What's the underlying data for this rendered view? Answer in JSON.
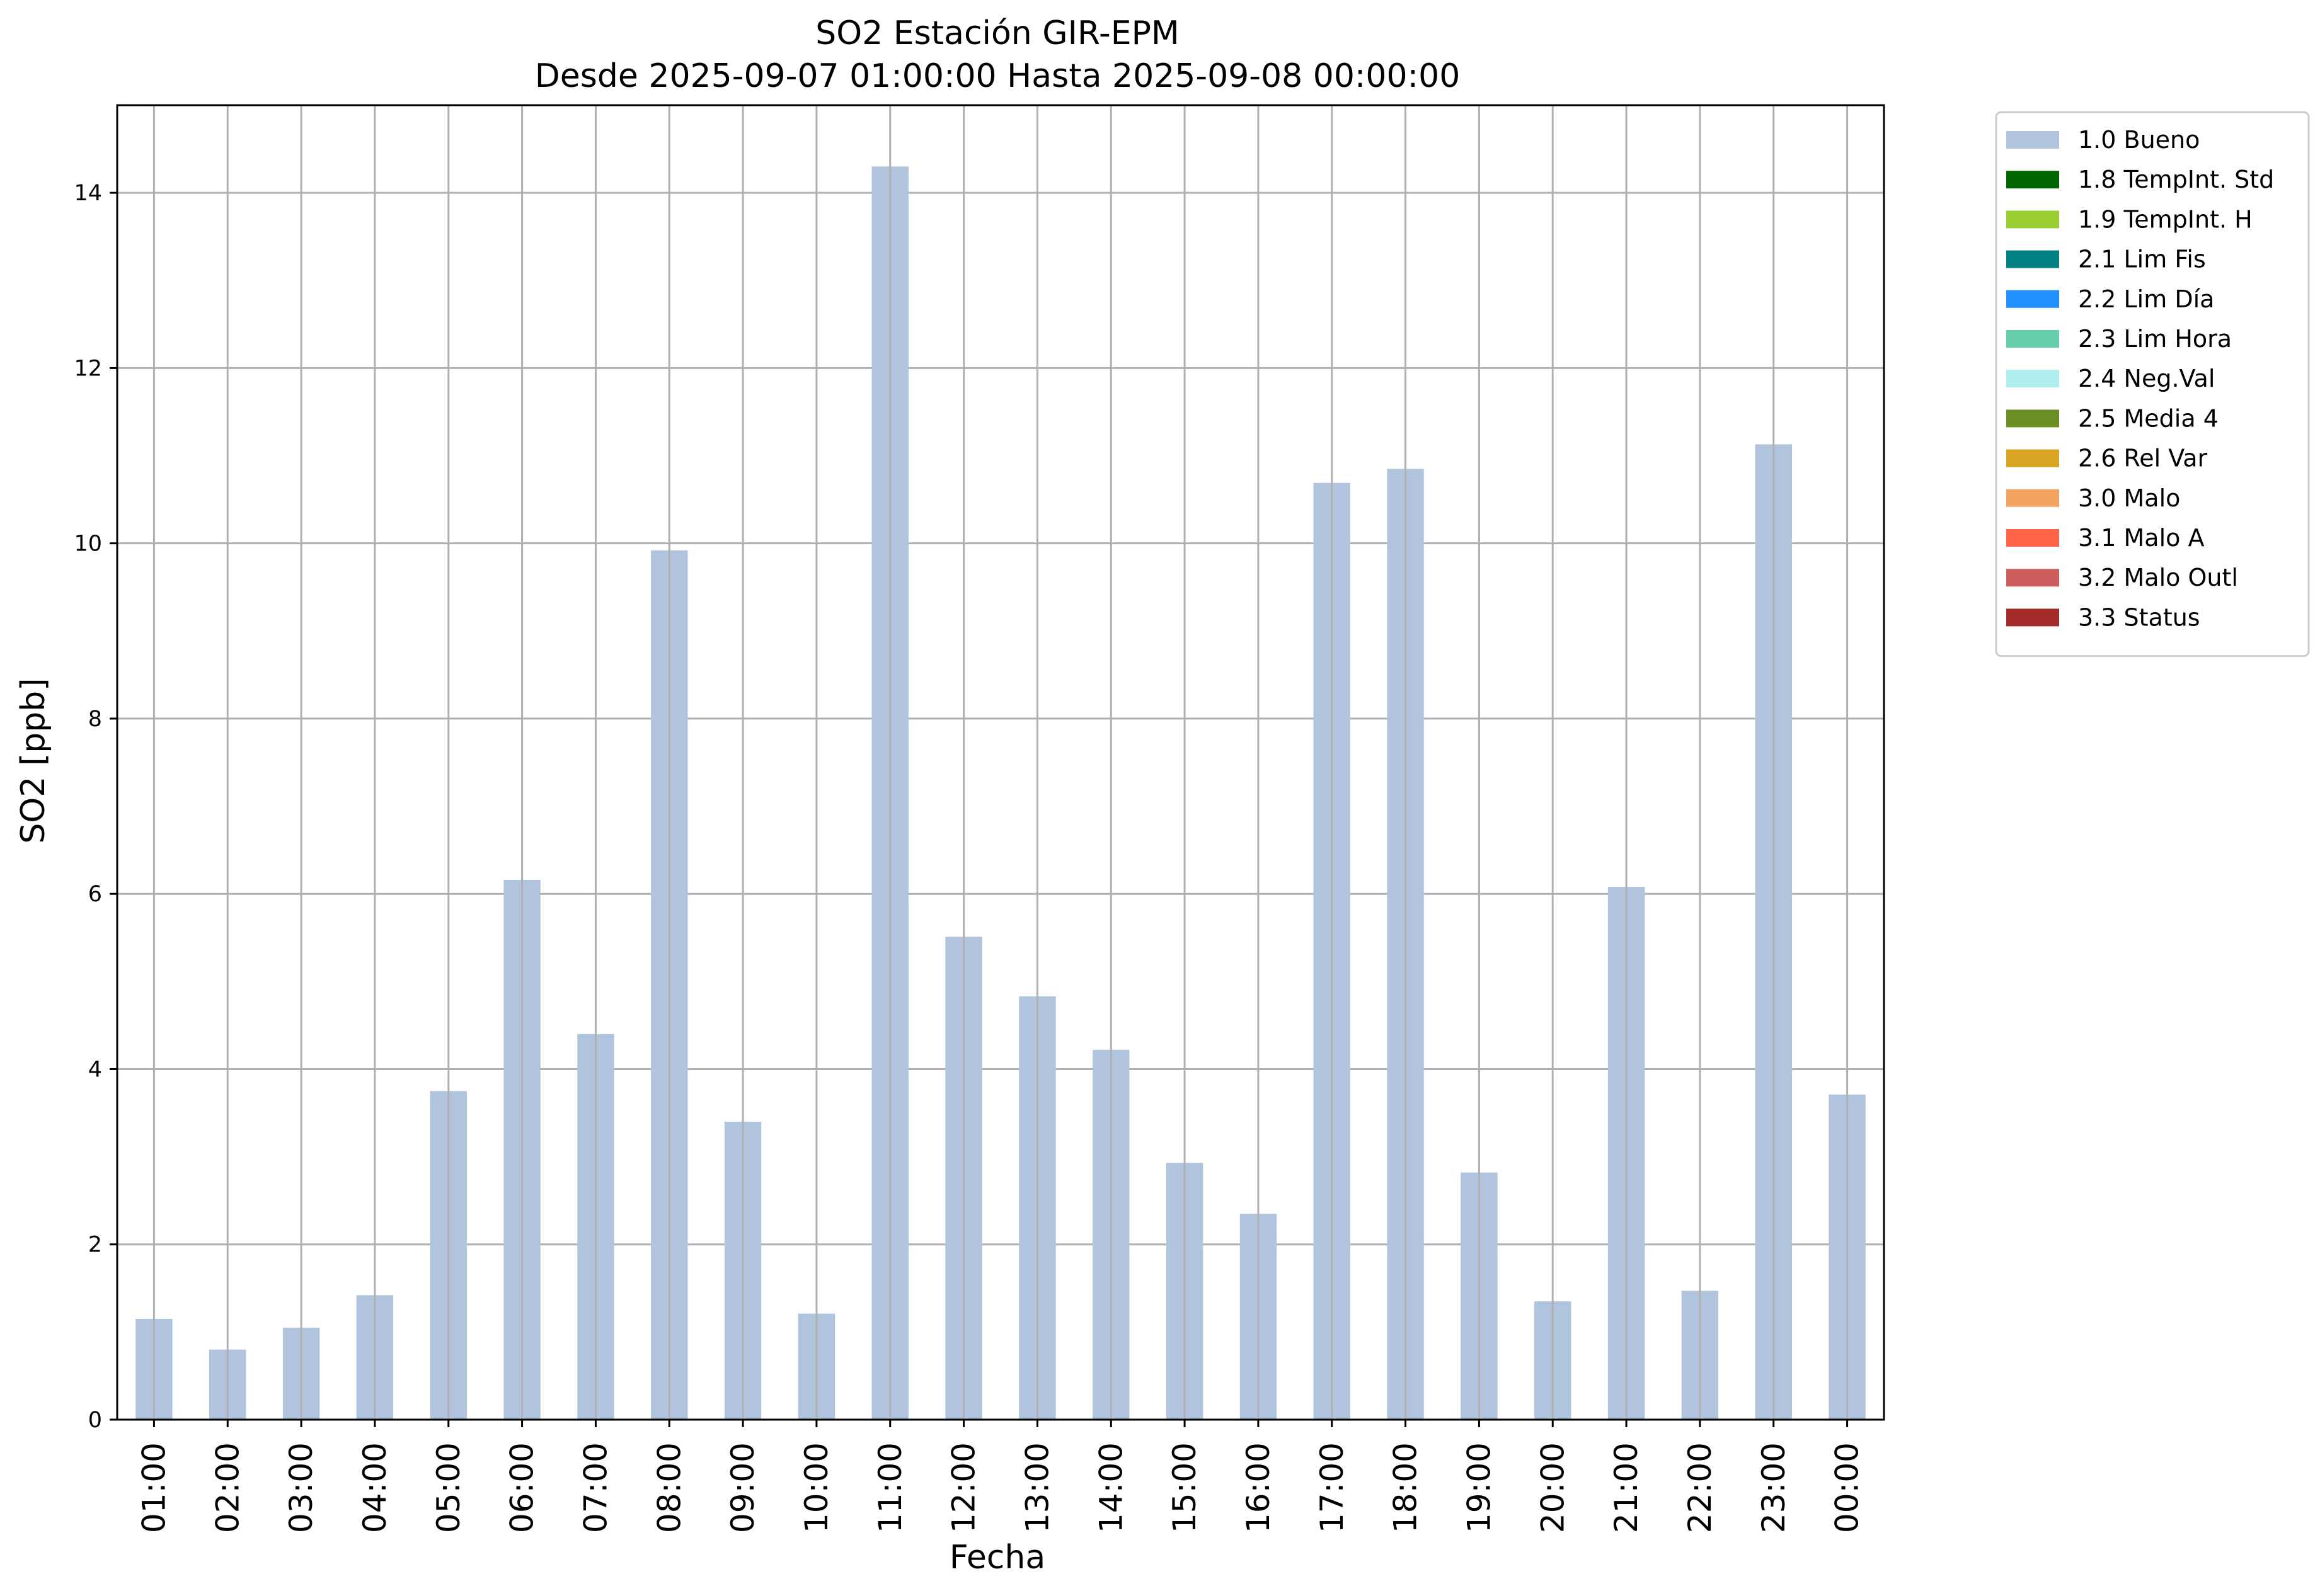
{
  "chart_data": {
    "type": "bar",
    "title": "SO2 Estación GIR-EPM",
    "subtitle": "Desde 2025-09-07 01:00:00 Hasta 2025-09-08 00:00:00",
    "xlabel": "Fecha",
    "ylabel": "SO2 [ppb]",
    "ylim": [
      0,
      15
    ],
    "yticks": [
      "0",
      "2",
      "4",
      "6",
      "8",
      "10",
      "12",
      "14"
    ],
    "grid": true,
    "legend_position": "outside-top-right",
    "categories": [
      "01:00",
      "02:00",
      "03:00",
      "04:00",
      "05:00",
      "06:00",
      "07:00",
      "08:00",
      "09:00",
      "10:00",
      "11:00",
      "12:00",
      "13:00",
      "14:00",
      "15:00",
      "16:00",
      "17:00",
      "18:00",
      "19:00",
      "20:00",
      "21:00",
      "22:00",
      "23:00",
      "00:00"
    ],
    "series": [
      {
        "name": "1.0 Bueno",
        "color": "#b0c4de",
        "values": [
          1.15,
          0.8,
          1.05,
          1.42,
          3.75,
          6.16,
          4.4,
          9.92,
          3.4,
          1.21,
          14.3,
          5.51,
          4.83,
          4.22,
          2.93,
          2.35,
          10.69,
          10.85,
          2.82,
          1.35,
          6.08,
          1.47,
          11.13,
          3.71
        ]
      }
    ],
    "legend": [
      {
        "label": "1.0 Bueno",
        "color": "#b0c4de"
      },
      {
        "label": "1.8 TempInt. Std",
        "color": "#006400"
      },
      {
        "label": "1.9 TempInt. H",
        "color": "#9acd32"
      },
      {
        "label": "2.1 Lim Fis",
        "color": "#008080"
      },
      {
        "label": "2.2 Lim Día",
        "color": "#1e90ff"
      },
      {
        "label": "2.3 Lim Hora",
        "color": "#66cdaa"
      },
      {
        "label": "2.4 Neg.Val",
        "color": "#afeeee"
      },
      {
        "label": "2.5 Media 4",
        "color": "#6b8e23"
      },
      {
        "label": "2.6 Rel Var",
        "color": "#daa520"
      },
      {
        "label": "3.0 Malo",
        "color": "#f4a460"
      },
      {
        "label": "3.1 Malo A",
        "color": "#ff6347"
      },
      {
        "label": "3.2 Malo Outl",
        "color": "#cd5c5c"
      },
      {
        "label": "3.3 Status",
        "color": "#a52a2a"
      }
    ]
  }
}
